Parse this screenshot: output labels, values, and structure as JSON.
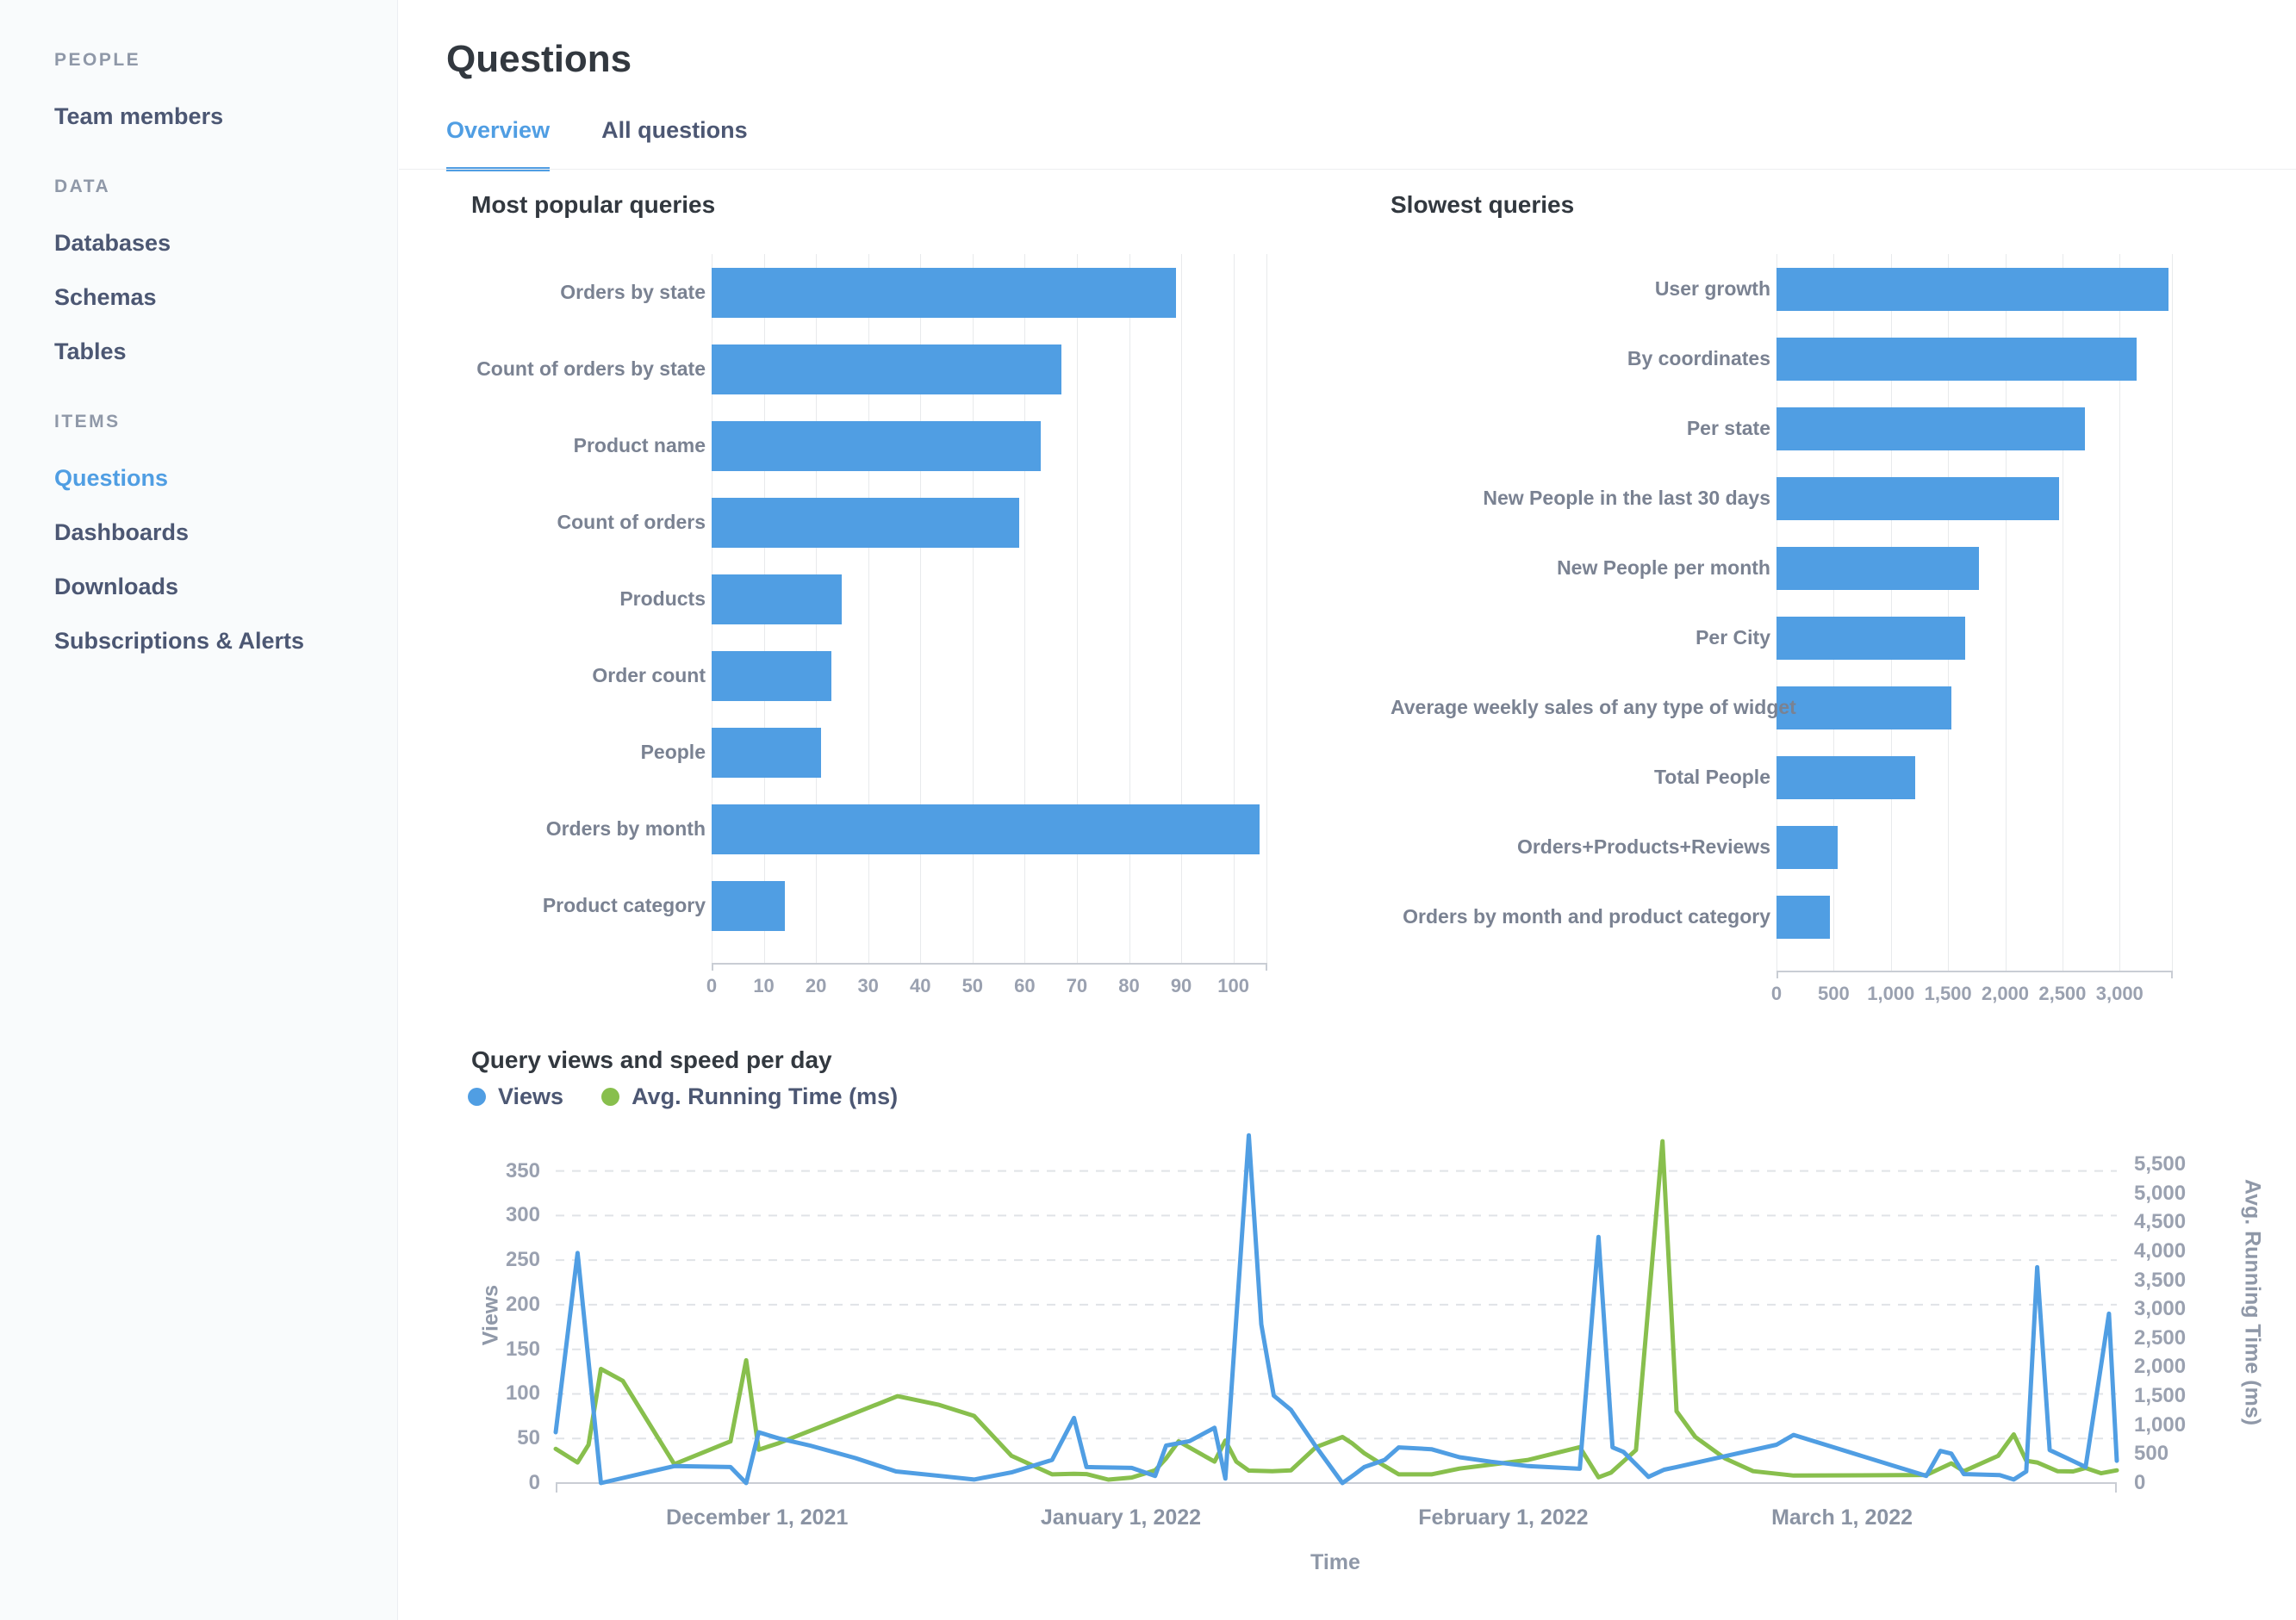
{
  "colors": {
    "accent": "#509EE3",
    "bar": "#509EE3",
    "line_views": "#509EE3",
    "line_running_time": "#88BF4D",
    "sidebar_bg": "#F9FBFC"
  },
  "sidebar": {
    "sections": [
      {
        "header": "PEOPLE",
        "items": [
          {
            "label": "Team members",
            "active": false
          }
        ]
      },
      {
        "header": "DATA",
        "items": [
          {
            "label": "Databases",
            "active": false
          },
          {
            "label": "Schemas",
            "active": false
          },
          {
            "label": "Tables",
            "active": false
          }
        ]
      },
      {
        "header": "ITEMS",
        "items": [
          {
            "label": "Questions",
            "active": true
          },
          {
            "label": "Dashboards",
            "active": false
          },
          {
            "label": "Downloads",
            "active": false
          },
          {
            "label": "Subscriptions & Alerts",
            "active": false
          }
        ]
      }
    ]
  },
  "header": {
    "title": "Questions",
    "tabs": [
      {
        "label": "Overview",
        "active": true
      },
      {
        "label": "All questions",
        "active": false
      }
    ]
  },
  "chart_data": [
    {
      "id": "popular",
      "type": "bar",
      "orientation": "horizontal",
      "title": "Most popular queries",
      "categories": [
        "Orders by state",
        "Count of orders by state",
        "Product name",
        "Count of orders",
        "Products",
        "Order count",
        "People",
        "Orders by month",
        "Product category"
      ],
      "values": [
        89,
        67,
        63,
        59,
        25,
        23,
        21,
        105,
        14
      ],
      "xlim": [
        0,
        106.5
      ],
      "grid": true,
      "ticks": {
        "values": [
          0,
          10,
          20,
          30,
          40,
          50,
          60,
          70,
          80,
          90,
          100
        ],
        "labels": [
          "0",
          "10",
          "20",
          "30",
          "40",
          "50",
          "60",
          "70",
          "80",
          "90",
          "100"
        ]
      }
    },
    {
      "id": "slowest",
      "type": "bar",
      "orientation": "horizontal",
      "title": "Slowest queries",
      "categories": [
        "User growth",
        "By coordinates",
        "Per state",
        "New People in the last 30 days",
        "New People per month",
        "Per City",
        "Average weekly sales of any type of widget",
        "Total People",
        "Orders+Products+Reviews",
        "Orders by month and product category"
      ],
      "values": [
        3430,
        3150,
        2700,
        2470,
        1770,
        1650,
        1530,
        1210,
        535,
        470
      ],
      "xlim": [
        0,
        3465
      ],
      "grid": true,
      "ticks": {
        "values": [
          0,
          500,
          1000,
          1500,
          2000,
          2500,
          3000
        ],
        "labels": [
          "0",
          "500",
          "1,000",
          "1,500",
          "2,000",
          "2,500",
          "3,000"
        ]
      }
    },
    {
      "id": "timeseries",
      "type": "line",
      "title": "Query views and speed per day",
      "xlabel": "Time",
      "y1_label": "Views",
      "y2_label": "Avg. Running Time (ms)",
      "legend_position": "top-left",
      "grid": "dashed-horizontal",
      "y1_axis": {
        "plot_max": 396,
        "ticks": {
          "values": [
            0,
            50,
            100,
            150,
            200,
            250,
            300,
            350
          ],
          "labels": [
            "0",
            "50",
            "100",
            "150",
            "200",
            "250",
            "300",
            "350"
          ]
        }
      },
      "y2_axis": {
        "plot_max": 6095,
        "ticks": {
          "values": [
            0,
            500,
            1000,
            1500,
            2000,
            2500,
            3000,
            3500,
            4000,
            4500,
            5000,
            5500
          ],
          "labels": [
            "0",
            "500",
            "1,000",
            "1,500",
            "2,000",
            "2,500",
            "3,000",
            "3,500",
            "4,000",
            "4,500",
            "5,000",
            "5,500"
          ]
        }
      },
      "x_ticks": [
        {
          "label": "December 1, 2021",
          "f": 0.129
        },
        {
          "label": "January 1, 2022",
          "f": 0.362
        },
        {
          "label": "February 1, 2022",
          "f": 0.607
        },
        {
          "label": "March 1, 2022",
          "f": 0.824
        }
      ],
      "x_range_note": "x stored as fraction 0-1 of plot width (~Nov 16 2021 to ~Mar 24 2022)",
      "series": [
        {
          "name": "Views",
          "axis": "y1",
          "color": "#509EE3",
          "points": [
            [
              0.0,
              57
            ],
            [
              0.014,
              258
            ],
            [
              0.029,
              0
            ],
            [
              0.076,
              19
            ],
            [
              0.112,
              18
            ],
            [
              0.122,
              0
            ],
            [
              0.13,
              57
            ],
            [
              0.143,
              50
            ],
            [
              0.163,
              42
            ],
            [
              0.192,
              28
            ],
            [
              0.218,
              13
            ],
            [
              0.246,
              8
            ],
            [
              0.268,
              4
            ],
            [
              0.292,
              12
            ],
            [
              0.318,
              26
            ],
            [
              0.332,
              73
            ],
            [
              0.34,
              18
            ],
            [
              0.369,
              17
            ],
            [
              0.384,
              8
            ],
            [
              0.391,
              42
            ],
            [
              0.406,
              47
            ],
            [
              0.422,
              62
            ],
            [
              0.429,
              5
            ],
            [
              0.444,
              390
            ],
            [
              0.452,
              178
            ],
            [
              0.46,
              98
            ],
            [
              0.471,
              82
            ],
            [
              0.487,
              41
            ],
            [
              0.504,
              0
            ],
            [
              0.512,
              10
            ],
            [
              0.518,
              18
            ],
            [
              0.531,
              26
            ],
            [
              0.54,
              40
            ],
            [
              0.561,
              38
            ],
            [
              0.579,
              29
            ],
            [
              0.599,
              24
            ],
            [
              0.623,
              19
            ],
            [
              0.656,
              16
            ],
            [
              0.668,
              276
            ],
            [
              0.677,
              40
            ],
            [
              0.684,
              35
            ],
            [
              0.7,
              7
            ],
            [
              0.71,
              15
            ],
            [
              0.718,
              18
            ],
            [
              0.782,
              43
            ],
            [
              0.793,
              54
            ],
            [
              0.878,
              8
            ],
            [
              0.887,
              36
            ],
            [
              0.894,
              33
            ],
            [
              0.902,
              10
            ],
            [
              0.925,
              9
            ],
            [
              0.934,
              4
            ],
            [
              0.942,
              13
            ],
            [
              0.949,
              242
            ],
            [
              0.957,
              37
            ],
            [
              0.968,
              28
            ],
            [
              0.98,
              18
            ],
            [
              0.995,
              190
            ],
            [
              1.0,
              25
            ]
          ]
        },
        {
          "name": "Avg. Running Time (ms)",
          "axis": "y2",
          "color": "#88BF4D",
          "points": [
            [
              0.0,
              590
            ],
            [
              0.014,
              355
            ],
            [
              0.021,
              660
            ],
            [
              0.029,
              1970
            ],
            [
              0.043,
              1765
            ],
            [
              0.076,
              325
            ],
            [
              0.112,
              720
            ],
            [
              0.122,
              2120
            ],
            [
              0.13,
              575
            ],
            [
              0.143,
              690
            ],
            [
              0.192,
              1210
            ],
            [
              0.219,
              1500
            ],
            [
              0.245,
              1355
            ],
            [
              0.268,
              1160
            ],
            [
              0.292,
              470
            ],
            [
              0.318,
              150
            ],
            [
              0.332,
              160
            ],
            [
              0.34,
              155
            ],
            [
              0.354,
              60
            ],
            [
              0.369,
              95
            ],
            [
              0.384,
              220
            ],
            [
              0.391,
              425
            ],
            [
              0.399,
              720
            ],
            [
              0.422,
              370
            ],
            [
              0.429,
              735
            ],
            [
              0.436,
              370
            ],
            [
              0.444,
              215
            ],
            [
              0.459,
              205
            ],
            [
              0.471,
              220
            ],
            [
              0.487,
              620
            ],
            [
              0.504,
              795
            ],
            [
              0.51,
              690
            ],
            [
              0.518,
              515
            ],
            [
              0.531,
              295
            ],
            [
              0.54,
              150
            ],
            [
              0.561,
              150
            ],
            [
              0.579,
              250
            ],
            [
              0.601,
              325
            ],
            [
              0.623,
              400
            ],
            [
              0.656,
              620
            ],
            [
              0.668,
              100
            ],
            [
              0.676,
              180
            ],
            [
              0.692,
              570
            ],
            [
              0.709,
              5900
            ],
            [
              0.718,
              1240
            ],
            [
              0.73,
              795
            ],
            [
              0.749,
              425
            ],
            [
              0.767,
              205
            ],
            [
              0.793,
              130
            ],
            [
              0.878,
              140
            ],
            [
              0.894,
              340
            ],
            [
              0.902,
              205
            ],
            [
              0.924,
              470
            ],
            [
              0.934,
              840
            ],
            [
              0.942,
              385
            ],
            [
              0.949,
              355
            ],
            [
              0.962,
              205
            ],
            [
              0.972,
              200
            ],
            [
              0.98,
              260
            ],
            [
              0.99,
              170
            ],
            [
              1.0,
              220
            ]
          ]
        }
      ]
    }
  ]
}
